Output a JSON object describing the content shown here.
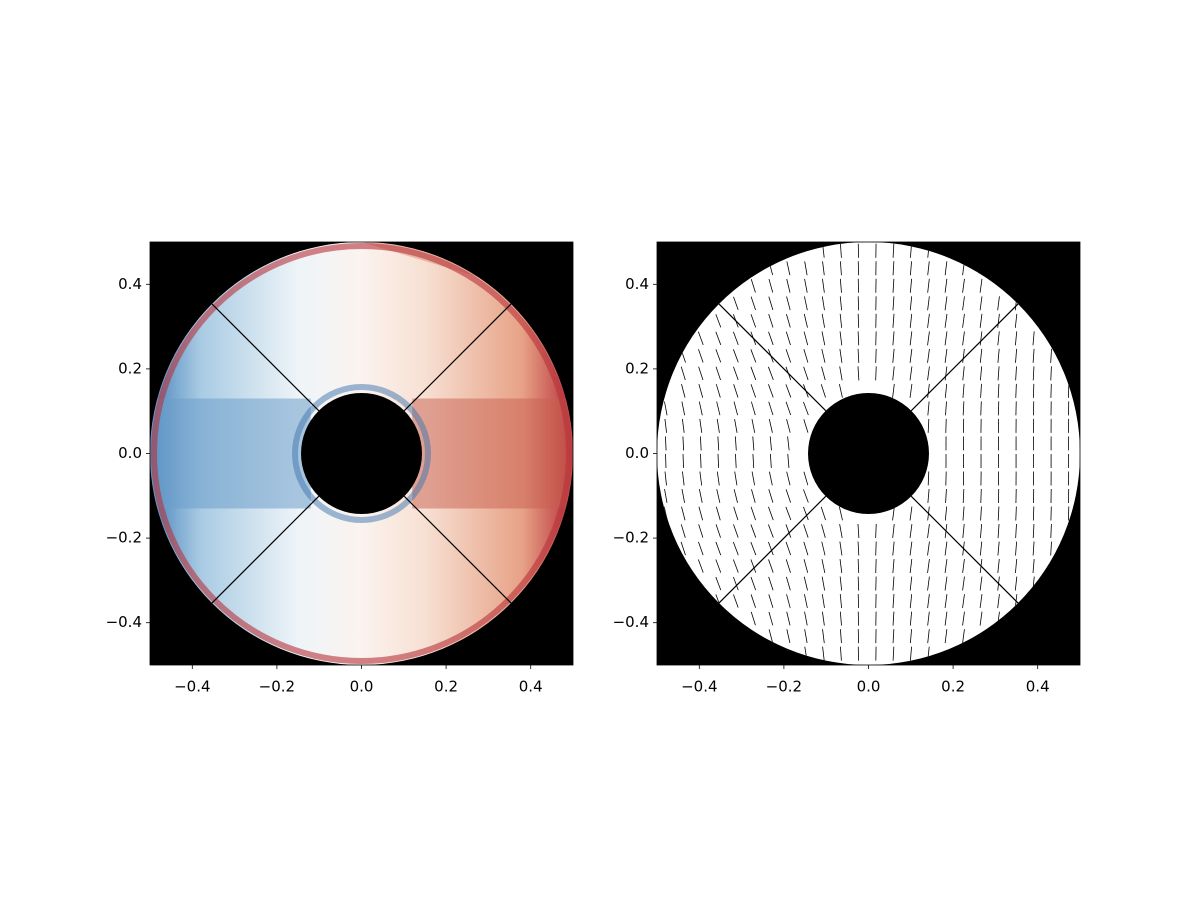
{
  "chart_data": [
    {
      "type": "image",
      "xlim": [
        -0.5,
        0.5
      ],
      "ylim": [
        -0.5,
        0.5
      ],
      "xticks": [
        {
          "value": -0.4,
          "label": "−0.4"
        },
        {
          "value": -0.2,
          "label": "−0.2"
        },
        {
          "value": 0,
          "label": "0.0"
        },
        0.2,
        0.4
      ],
      "yticks": [
        {
          "value": -0.4,
          "label": "−0.4"
        },
        {
          "value": -0.2,
          "label": "−0.2"
        },
        {
          "value": 0,
          "label": "0.0"
        },
        0.2,
        0.4
      ]
    },
    {
      "type": "quiver",
      "xlim": [
        -0.5,
        0.5
      ],
      "ylim": [
        -0.5,
        0.5
      ],
      "xticks": [
        {
          "value": -0.4,
          "label": "−0.4"
        },
        {
          "value": -0.2,
          "label": "−0.2"
        },
        {
          "value": 0,
          "label": "0.0"
        },
        0.2,
        0.4
      ],
      "yticks": [
        {
          "value": -0.4,
          "label": "−0.4"
        },
        {
          "value": -0.2,
          "label": "−0.2"
        },
        {
          "value": 0,
          "label": "0.0"
        },
        0.2,
        0.4
      ]
    }
  ]
}
